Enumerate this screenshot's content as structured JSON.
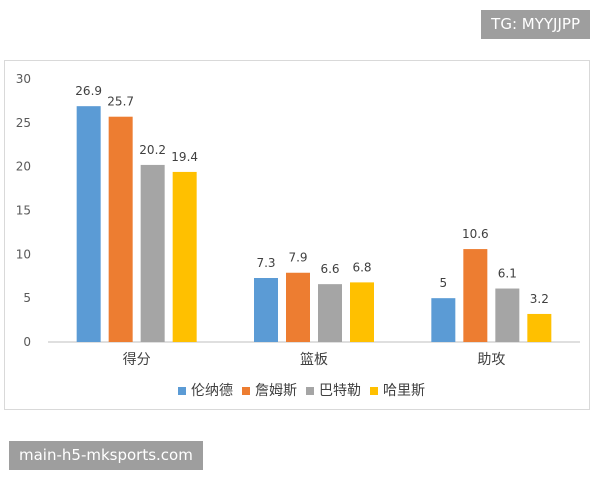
{
  "badges": {
    "top_right": "TG: MYYJJPP",
    "bottom_left": "main-h5-mksports.com"
  },
  "chart_data": {
    "type": "bar",
    "categories": [
      "得分",
      "篮板",
      "助攻"
    ],
    "series": [
      {
        "name": "伦纳德",
        "color": "#5b9bd5",
        "values": [
          26.9,
          7.3,
          5
        ]
      },
      {
        "name": "詹姆斯",
        "color": "#ed7d31",
        "values": [
          25.7,
          7.9,
          10.6
        ]
      },
      {
        "name": "巴特勒",
        "color": "#a5a5a5",
        "values": [
          20.2,
          6.6,
          6.1
        ]
      },
      {
        "name": "哈里斯",
        "color": "#ffc000",
        "values": [
          19.4,
          6.8,
          3.2
        ]
      }
    ],
    "yticks": [
      0,
      5,
      10,
      15,
      20,
      25,
      30
    ],
    "ylim": [
      0,
      30
    ],
    "grid": false,
    "legend": "bottom",
    "data_labels": true,
    "title": "",
    "xlabel": "",
    "ylabel": ""
  }
}
